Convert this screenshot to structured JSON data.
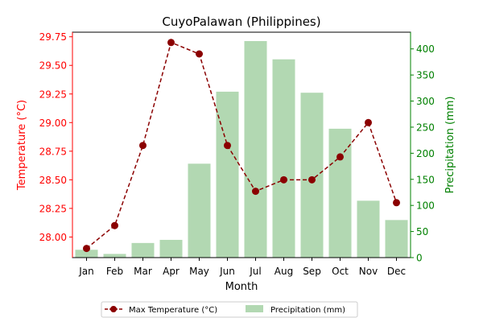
{
  "chart_data": {
    "type": "bar+line",
    "title": "CuyoPalawan (Philippines)",
    "xlabel": "Month",
    "ylabel_left": "Temperature (°C)",
    "ylabel_right": "Precipitation (mm)",
    "categories": [
      "Jan",
      "Feb",
      "Mar",
      "Apr",
      "May",
      "Jun",
      "Jul",
      "Aug",
      "Sep",
      "Oct",
      "Nov",
      "Dec"
    ],
    "y_left_range": [
      27.82,
      29.79
    ],
    "y_left_ticks": [
      "28.00",
      "28.25",
      "28.50",
      "28.75",
      "29.00",
      "29.25",
      "29.50",
      "29.75"
    ],
    "y_right_range": [
      0,
      432
    ],
    "y_right_ticks": [
      "0",
      "50",
      "100",
      "150",
      "200",
      "250",
      "300",
      "350",
      "400"
    ],
    "grid": false,
    "legend_position": "bottom-center",
    "series": [
      {
        "name": "Max Temperature (°C)",
        "kind": "line",
        "axis": "left",
        "values": [
          27.9,
          28.1,
          28.8,
          29.7,
          29.6,
          28.8,
          28.4,
          28.5,
          28.5,
          28.7,
          29.0,
          28.3
        ]
      },
      {
        "name": "Precipitation (mm)",
        "kind": "bar",
        "axis": "right",
        "values": [
          15,
          7,
          28,
          34,
          180,
          318,
          415,
          380,
          316,
          247,
          109,
          72
        ]
      }
    ],
    "colors": {
      "line": "#8b0000",
      "bar": "#b2d8b2",
      "left_axis": "#ff0000",
      "right_axis": "#008000"
    }
  }
}
